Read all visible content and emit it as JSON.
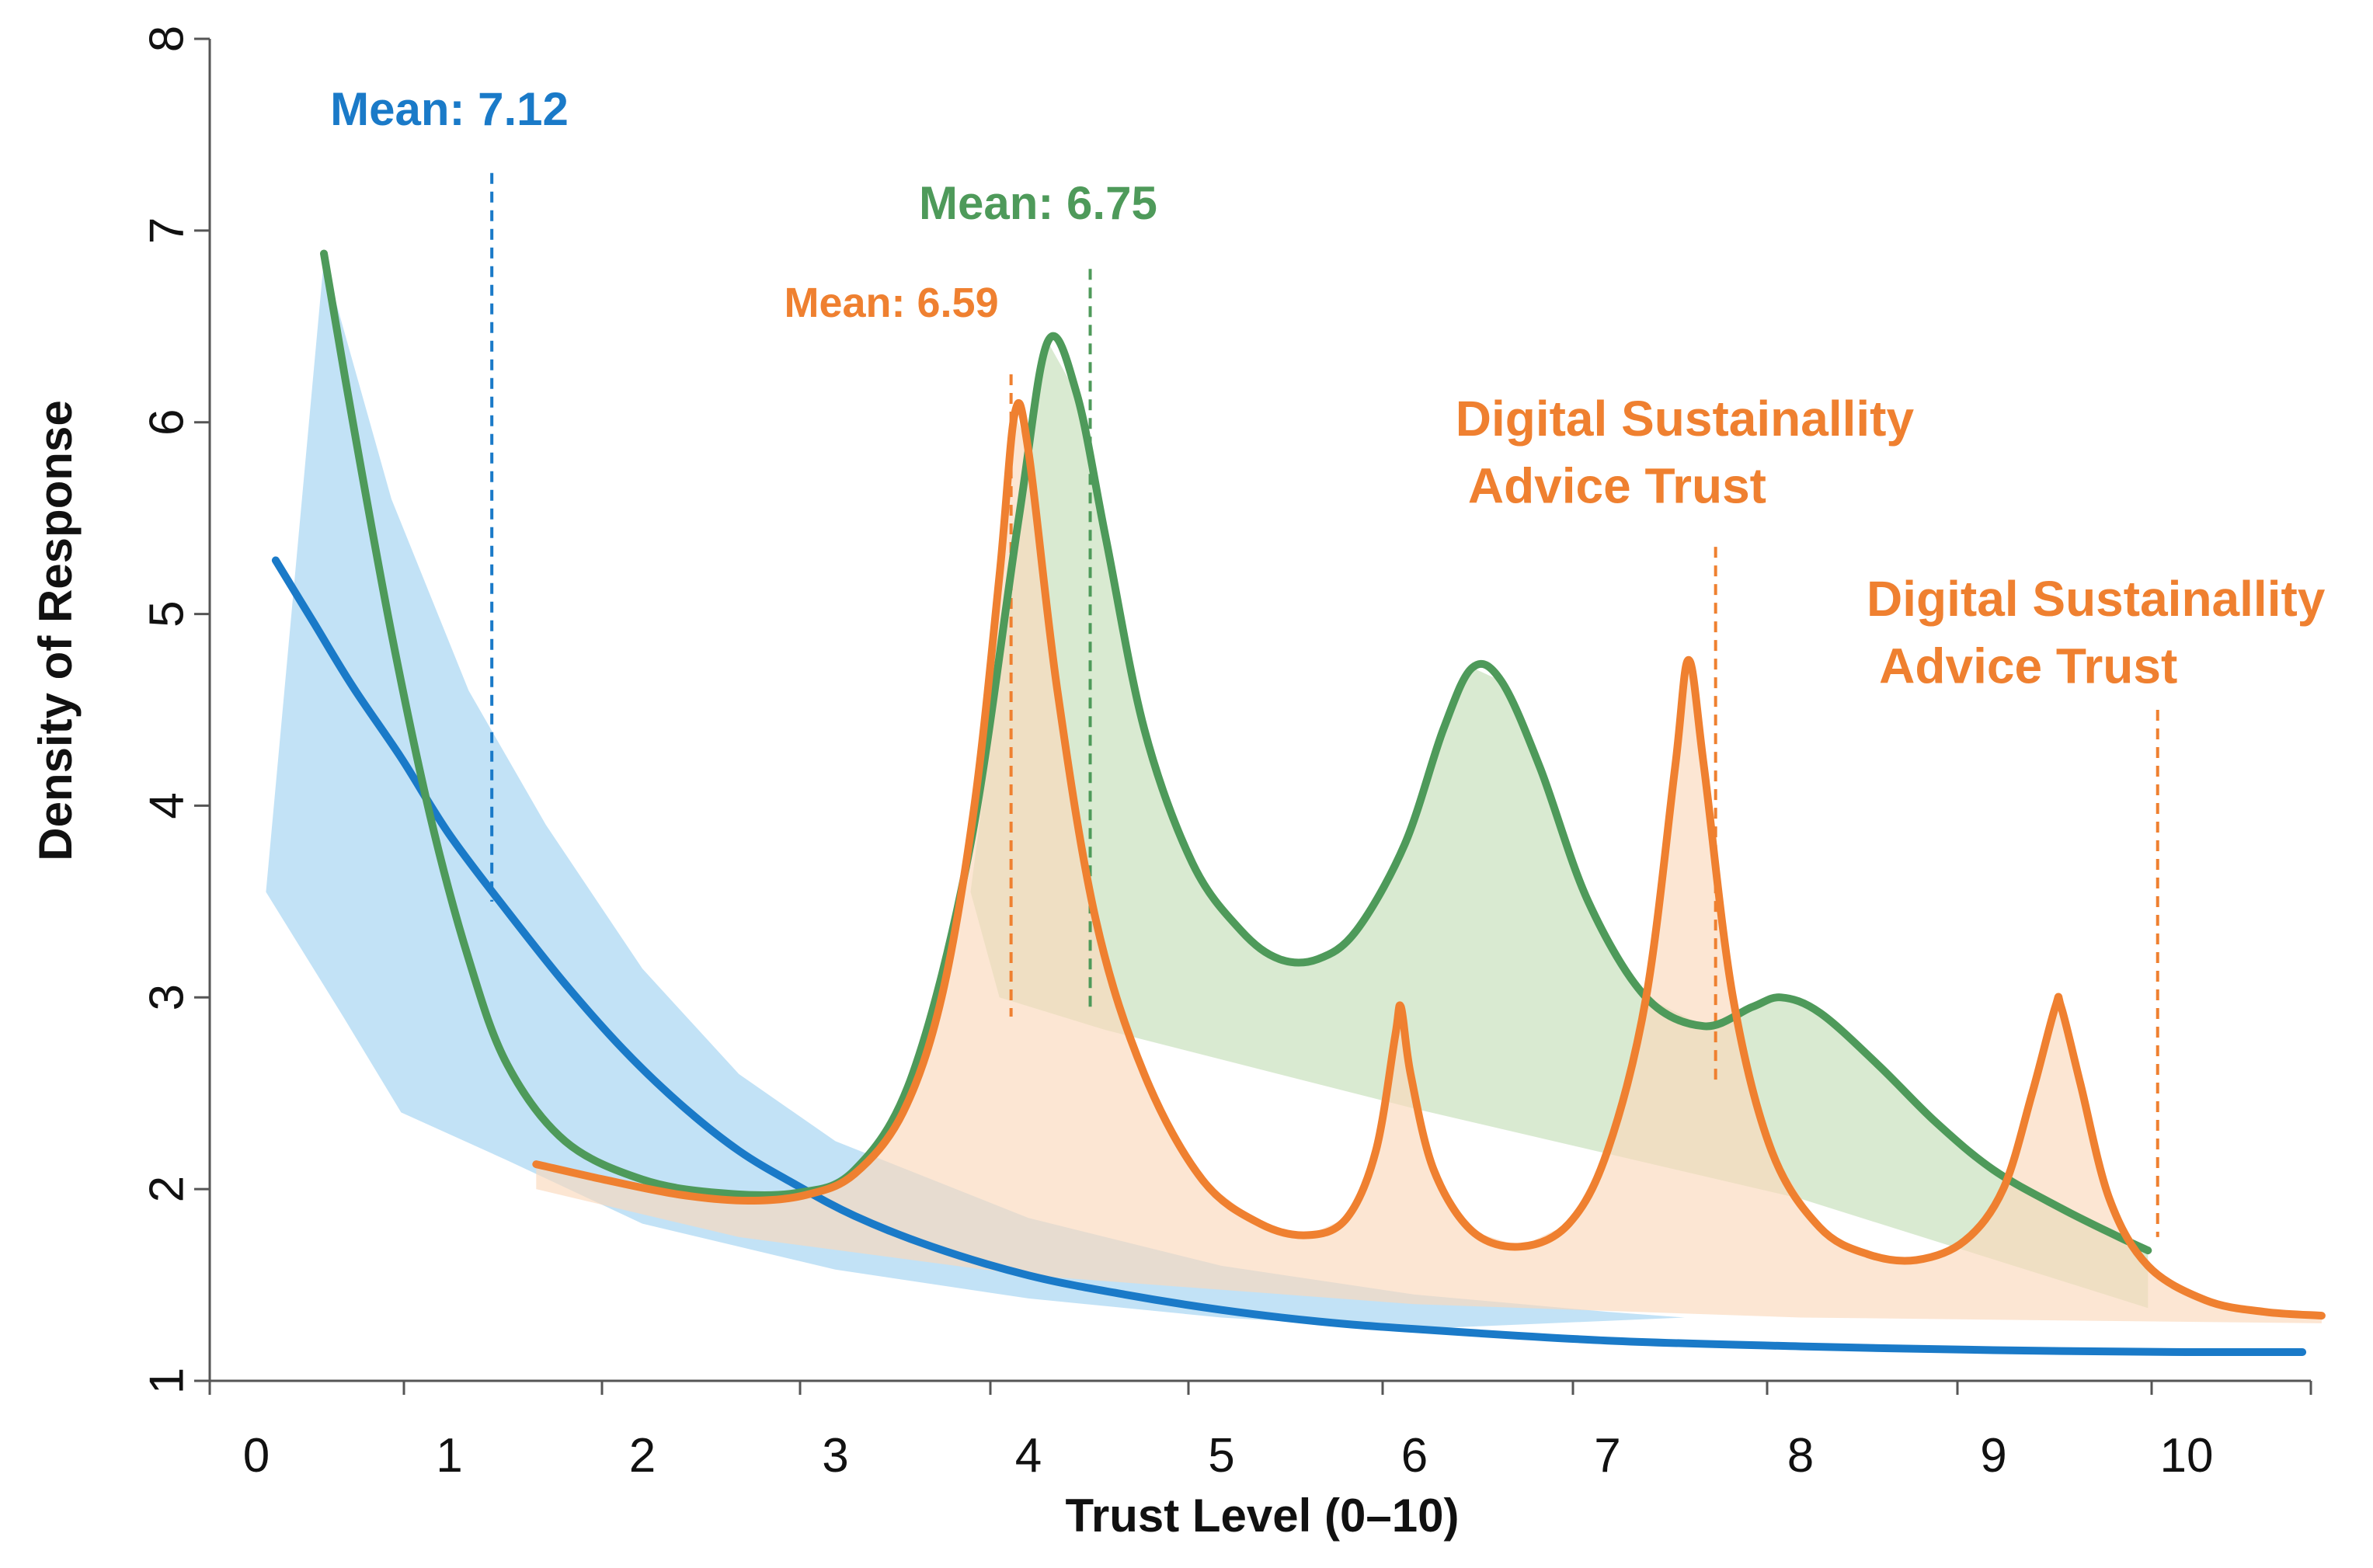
{
  "chart_data": {
    "type": "area",
    "title": "",
    "xlabel": "Trust Level (0–10)",
    "ylabel": "Density of Response",
    "xlim": [
      -0.2,
      10.9
    ],
    "ylim": [
      1,
      8
    ],
    "x_ticks": [
      0,
      1,
      2,
      3,
      4,
      5,
      6,
      7,
      8,
      9,
      10
    ],
    "y_ticks": [
      1,
      2,
      3,
      4,
      5,
      6,
      7,
      8
    ],
    "grid": false,
    "colors": {
      "blue": "#1a7ac8",
      "green": "#4e9a5a",
      "orange": "#ef8030",
      "blue_fill": "#a8d6f2",
      "green_fill": "#cfe5c6",
      "orange_fill": "#fbd8bb",
      "axis": "#555555"
    },
    "series": [
      {
        "name": "blue",
        "color": "#1a7ac8",
        "points": [
          [
            0.1,
            5.28
          ],
          [
            0.3,
            4.95
          ],
          [
            0.5,
            4.62
          ],
          [
            0.75,
            4.25
          ],
          [
            1.0,
            3.85
          ],
          [
            1.3,
            3.45
          ],
          [
            1.6,
            3.07
          ],
          [
            1.9,
            2.73
          ],
          [
            2.2,
            2.44
          ],
          [
            2.5,
            2.2
          ],
          [
            2.8,
            2.02
          ],
          [
            3.1,
            1.86
          ],
          [
            3.5,
            1.7
          ],
          [
            4.0,
            1.55
          ],
          [
            4.5,
            1.45
          ],
          [
            5.0,
            1.37
          ],
          [
            5.5,
            1.31
          ],
          [
            6.0,
            1.27
          ],
          [
            7.0,
            1.21
          ],
          [
            8.0,
            1.18
          ],
          [
            9.0,
            1.16
          ],
          [
            10.0,
            1.15
          ],
          [
            10.6,
            1.15
          ]
        ]
      },
      {
        "name": "green",
        "color": "#4e9a5a",
        "points": [
          [
            0.35,
            6.88
          ],
          [
            0.5,
            6.0
          ],
          [
            0.7,
            4.9
          ],
          [
            0.9,
            3.95
          ],
          [
            1.1,
            3.2
          ],
          [
            1.3,
            2.65
          ],
          [
            1.6,
            2.25
          ],
          [
            2.0,
            2.05
          ],
          [
            2.4,
            1.98
          ],
          [
            2.8,
            1.98
          ],
          [
            3.1,
            2.1
          ],
          [
            3.4,
            2.6
          ],
          [
            3.7,
            3.8
          ],
          [
            3.95,
            5.5
          ],
          [
            4.1,
            6.42
          ],
          [
            4.25,
            6.15
          ],
          [
            4.4,
            5.4
          ],
          [
            4.6,
            4.4
          ],
          [
            4.85,
            3.7
          ],
          [
            5.1,
            3.35
          ],
          [
            5.3,
            3.2
          ],
          [
            5.5,
            3.2
          ],
          [
            5.7,
            3.35
          ],
          [
            5.95,
            3.8
          ],
          [
            6.15,
            4.4
          ],
          [
            6.3,
            4.72
          ],
          [
            6.45,
            4.65
          ],
          [
            6.65,
            4.2
          ],
          [
            6.9,
            3.5
          ],
          [
            7.2,
            3.0
          ],
          [
            7.5,
            2.85
          ],
          [
            7.75,
            2.95
          ],
          [
            7.9,
            3.0
          ],
          [
            8.1,
            2.92
          ],
          [
            8.4,
            2.65
          ],
          [
            8.7,
            2.35
          ],
          [
            9.0,
            2.1
          ],
          [
            9.35,
            1.9
          ],
          [
            9.65,
            1.75
          ],
          [
            9.8,
            1.68
          ]
        ]
      },
      {
        "name": "orange",
        "color": "#ef8030",
        "points": [
          [
            1.45,
            2.13
          ],
          [
            1.8,
            2.05
          ],
          [
            2.2,
            1.97
          ],
          [
            2.55,
            1.94
          ],
          [
            2.85,
            1.97
          ],
          [
            3.1,
            2.08
          ],
          [
            3.35,
            2.4
          ],
          [
            3.55,
            3.0
          ],
          [
            3.72,
            4.0
          ],
          [
            3.85,
            5.2
          ],
          [
            3.93,
            6.05
          ],
          [
            4.0,
            5.85
          ],
          [
            4.15,
            4.6
          ],
          [
            4.35,
            3.4
          ],
          [
            4.6,
            2.6
          ],
          [
            4.9,
            2.05
          ],
          [
            5.2,
            1.82
          ],
          [
            5.45,
            1.76
          ],
          [
            5.65,
            1.85
          ],
          [
            5.8,
            2.2
          ],
          [
            5.9,
            2.8
          ],
          [
            5.93,
            2.95
          ],
          [
            5.98,
            2.6
          ],
          [
            6.1,
            2.1
          ],
          [
            6.3,
            1.78
          ],
          [
            6.55,
            1.7
          ],
          [
            6.8,
            1.82
          ],
          [
            7.0,
            2.2
          ],
          [
            7.2,
            3.0
          ],
          [
            7.35,
            4.2
          ],
          [
            7.42,
            4.76
          ],
          [
            7.5,
            4.2
          ],
          [
            7.65,
            3.0
          ],
          [
            7.85,
            2.2
          ],
          [
            8.1,
            1.8
          ],
          [
            8.35,
            1.66
          ],
          [
            8.6,
            1.63
          ],
          [
            8.85,
            1.73
          ],
          [
            9.05,
            2.0
          ],
          [
            9.2,
            2.5
          ],
          [
            9.32,
            2.95
          ],
          [
            9.35,
            2.95
          ],
          [
            9.45,
            2.55
          ],
          [
            9.6,
            1.95
          ],
          [
            9.8,
            1.6
          ],
          [
            10.1,
            1.42
          ],
          [
            10.4,
            1.36
          ],
          [
            10.7,
            1.34
          ]
        ]
      }
    ],
    "bands": [
      {
        "name": "blue-band",
        "points": [
          [
            0.05,
            3.55
          ],
          [
            0.35,
            6.85
          ],
          [
            0.7,
            5.6
          ],
          [
            1.1,
            4.6
          ],
          [
            1.5,
            3.9
          ],
          [
            2.0,
            3.15
          ],
          [
            2.5,
            2.6
          ],
          [
            3.0,
            2.25
          ],
          [
            4.0,
            1.85
          ],
          [
            5.0,
            1.6
          ],
          [
            6.0,
            1.45
          ],
          [
            7.0,
            1.36
          ],
          [
            7.4,
            1.33
          ],
          [
            6.0,
            1.27
          ],
          [
            5.0,
            1.33
          ],
          [
            4.0,
            1.43
          ],
          [
            3.0,
            1.58
          ],
          [
            2.0,
            1.82
          ],
          [
            1.3,
            2.15
          ],
          [
            0.75,
            2.4
          ],
          [
            0.45,
            2.9
          ]
        ]
      },
      {
        "name": "green-band",
        "points": [
          [
            3.7,
            3.55
          ],
          [
            3.95,
            5.5
          ],
          [
            4.1,
            6.42
          ],
          [
            4.25,
            6.15
          ],
          [
            4.4,
            5.4
          ],
          [
            4.6,
            4.4
          ],
          [
            4.85,
            3.7
          ],
          [
            5.1,
            3.35
          ],
          [
            5.3,
            3.2
          ],
          [
            5.5,
            3.2
          ],
          [
            5.7,
            3.35
          ],
          [
            5.95,
            3.8
          ],
          [
            6.15,
            4.4
          ],
          [
            6.3,
            4.72
          ],
          [
            6.45,
            4.65
          ],
          [
            6.65,
            4.2
          ],
          [
            6.9,
            3.5
          ],
          [
            7.2,
            3.0
          ],
          [
            7.5,
            2.85
          ],
          [
            7.75,
            2.95
          ],
          [
            7.9,
            3.0
          ],
          [
            8.1,
            2.92
          ],
          [
            8.4,
            2.65
          ],
          [
            8.7,
            2.35
          ],
          [
            9.0,
            2.1
          ],
          [
            9.35,
            1.9
          ],
          [
            9.65,
            1.75
          ],
          [
            9.8,
            1.68
          ],
          [
            9.8,
            1.38
          ],
          [
            8.0,
            1.95
          ],
          [
            6.0,
            2.42
          ],
          [
            4.4,
            2.83
          ],
          [
            3.85,
            3.0
          ]
        ]
      },
      {
        "name": "orange-band",
        "points": [
          [
            1.45,
            2.13
          ],
          [
            1.8,
            2.05
          ],
          [
            2.2,
            1.97
          ],
          [
            2.55,
            1.94
          ],
          [
            2.85,
            1.97
          ],
          [
            3.1,
            2.08
          ],
          [
            3.35,
            2.4
          ],
          [
            3.55,
            3.0
          ],
          [
            3.72,
            4.0
          ],
          [
            3.85,
            5.2
          ],
          [
            3.93,
            6.05
          ],
          [
            4.0,
            5.85
          ],
          [
            4.15,
            4.6
          ],
          [
            4.35,
            3.4
          ],
          [
            4.6,
            2.6
          ],
          [
            4.9,
            2.05
          ],
          [
            5.2,
            1.82
          ],
          [
            5.45,
            1.76
          ],
          [
            5.65,
            1.85
          ],
          [
            5.8,
            2.2
          ],
          [
            5.9,
            2.8
          ],
          [
            5.93,
            2.95
          ],
          [
            5.98,
            2.6
          ],
          [
            6.1,
            2.1
          ],
          [
            6.3,
            1.78
          ],
          [
            6.55,
            1.7
          ],
          [
            6.8,
            1.82
          ],
          [
            7.0,
            2.2
          ],
          [
            7.2,
            3.0
          ],
          [
            7.35,
            4.2
          ],
          [
            7.42,
            4.76
          ],
          [
            7.5,
            4.2
          ],
          [
            7.65,
            3.0
          ],
          [
            7.85,
            2.2
          ],
          [
            8.1,
            1.8
          ],
          [
            8.35,
            1.66
          ],
          [
            8.6,
            1.63
          ],
          [
            8.85,
            1.73
          ],
          [
            9.05,
            2.0
          ],
          [
            9.2,
            2.5
          ],
          [
            9.32,
            2.95
          ],
          [
            9.35,
            2.95
          ],
          [
            9.45,
            2.55
          ],
          [
            9.6,
            1.95
          ],
          [
            9.8,
            1.6
          ],
          [
            10.1,
            1.42
          ],
          [
            10.4,
            1.36
          ],
          [
            10.7,
            1.34
          ],
          [
            10.7,
            1.3
          ],
          [
            8.0,
            1.33
          ],
          [
            6.0,
            1.4
          ],
          [
            4.0,
            1.55
          ],
          [
            2.5,
            1.75
          ],
          [
            1.45,
            2.0
          ]
        ]
      }
    ],
    "mean_lines": [
      {
        "color": "#1a7ac8",
        "x": 1.22,
        "y_top": 7.3,
        "y_bottom": 3.5
      },
      {
        "color": "#4e9a5a",
        "x": 4.32,
        "y_top": 6.8,
        "y_bottom": 2.93
      },
      {
        "color": "#ef8030",
        "x": 3.91,
        "y_top": 6.25,
        "y_bottom": 2.9
      },
      {
        "color": "#ef8030",
        "x": 7.56,
        "y_top": 5.35,
        "y_bottom": 2.55
      },
      {
        "color": "#ef8030",
        "x": 9.85,
        "y_top": 4.5,
        "y_bottom": 1.75
      }
    ],
    "annotations": [
      {
        "text": "Mean: 7.12",
        "color": "#1a7ac8",
        "x": 1.0,
        "y": 7.55,
        "size": 60
      },
      {
        "text": "Mean: 6.75",
        "color": "#4e9a5a",
        "x": 4.05,
        "y": 7.06,
        "size": 60
      },
      {
        "text": "Mean: 6.59",
        "color": "#ef8030",
        "x": 3.29,
        "y": 6.55,
        "size": 54
      },
      {
        "text": "Digital Sustainallity",
        "color": "#ef8030",
        "x": 7.4,
        "y": 5.93,
        "size": 64
      },
      {
        "text": "Advice Trust",
        "color": "#ef8030",
        "x": 7.05,
        "y": 5.58,
        "size": 64
      },
      {
        "text": "Digital Sustainallity",
        "color": "#ef8030",
        "x": 9.53,
        "y": 4.99,
        "size": 64
      },
      {
        "text": "Advice Trust",
        "color": "#ef8030",
        "x": 9.18,
        "y": 4.64,
        "size": 64
      }
    ]
  }
}
